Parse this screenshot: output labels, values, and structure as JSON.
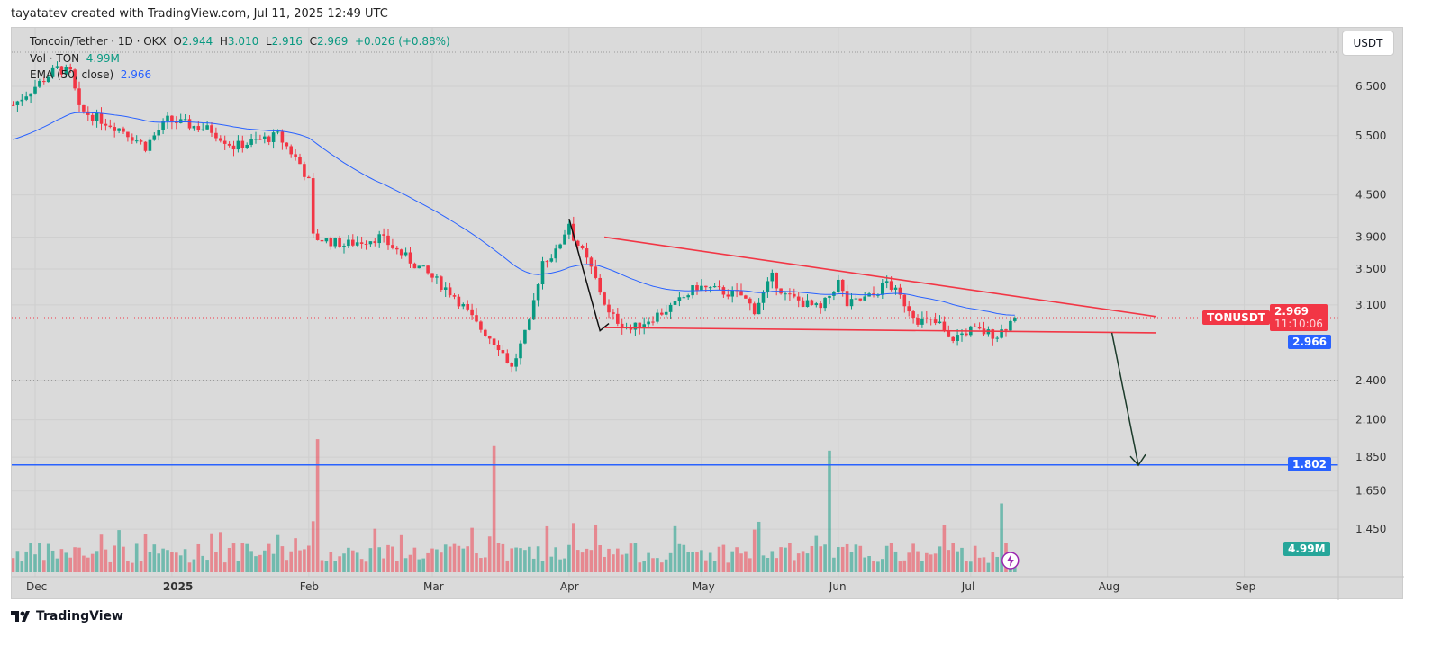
{
  "credit": "tayatatev created with TradingView.com, Jul 11, 2025 12:49 UTC",
  "legend": {
    "symbol": "Toncoin/Tether · 1D · OKX",
    "o_label": "O",
    "o": "2.944",
    "h_label": "H",
    "h": "3.010",
    "l_label": "L",
    "l": "2.916",
    "c_label": "C",
    "c": "2.969",
    "change": "+0.026 (+0.88%)",
    "vol_label": "Vol · TON",
    "vol": "4.99M",
    "ema_label": "EMA (50, close)",
    "ema": "2.966"
  },
  "currency_button": "USDT",
  "tags": {
    "symbol": "TONUSDT",
    "price": "2.969",
    "countdown": "11:10:06",
    "ema": "2.966",
    "level": "1.802",
    "volume": "4.99M"
  },
  "footer": "TradingView",
  "colors": {
    "up": "#089981",
    "down": "#f23645",
    "ema": "#2962ff",
    "trend": "#f23645",
    "level": "#2962ff"
  },
  "chart_data": {
    "type": "candlestick",
    "title": "Toncoin/Tether · 1D · OKX",
    "y_scale": "log",
    "y_ticks": [
      "6.500",
      "5.500",
      "4.500",
      "3.900",
      "3.500",
      "3.100",
      "2.400",
      "2.100",
      "1.850",
      "1.650",
      "1.450"
    ],
    "x_ticks": [
      [
        "Dec",
        "2024-12-01"
      ],
      [
        "2025",
        "2025-01-01"
      ],
      [
        "Feb",
        "2025-02-01"
      ],
      [
        "Mar",
        "2025-03-01"
      ],
      [
        "Apr",
        "2025-04-01"
      ],
      [
        "May",
        "2025-05-01"
      ],
      [
        "Jun",
        "2025-06-01"
      ],
      [
        "Jul",
        "2025-07-01"
      ],
      [
        "Aug",
        "2025-08-01"
      ],
      [
        "Sep",
        "2025-09-01"
      ]
    ],
    "close_keypoints": [
      [
        "2024-11-26",
        6.1
      ],
      [
        "2024-12-01",
        6.5
      ],
      [
        "2024-12-06",
        6.9
      ],
      [
        "2024-12-09",
        6.8
      ],
      [
        "2024-12-11",
        6.0
      ],
      [
        "2024-12-21",
        5.6
      ],
      [
        "2024-12-26",
        5.3
      ],
      [
        "2024-12-31",
        5.8
      ],
      [
        "2025-01-10",
        5.6
      ],
      [
        "2025-01-15",
        5.3
      ],
      [
        "2025-01-25",
        5.5
      ],
      [
        "2025-01-30",
        5.0
      ],
      [
        "2025-02-01",
        4.7
      ],
      [
        "2025-02-02",
        3.9
      ],
      [
        "2025-02-09",
        3.8
      ],
      [
        "2025-02-17",
        3.9
      ],
      [
        "2025-02-24",
        3.6
      ],
      [
        "2025-03-06",
        3.2
      ],
      [
        "2025-03-11",
        2.9
      ],
      [
        "2025-03-16",
        2.7
      ],
      [
        "2025-03-19",
        2.5
      ],
      [
        "2025-03-23",
        2.9
      ],
      [
        "2025-03-26",
        3.6
      ],
      [
        "2025-03-29",
        3.7
      ],
      [
        "2025-04-01",
        4.1
      ],
      [
        "2025-04-02",
        3.9
      ],
      [
        "2025-04-06",
        3.5
      ],
      [
        "2025-04-10",
        3.0
      ],
      [
        "2025-04-15",
        2.85
      ],
      [
        "2025-04-25",
        3.1
      ],
      [
        "2025-04-30",
        3.3
      ],
      [
        "2025-05-10",
        3.2
      ],
      [
        "2025-05-13",
        3.05
      ],
      [
        "2025-05-17",
        3.4
      ],
      [
        "2025-05-20",
        3.2
      ],
      [
        "2025-05-28",
        3.05
      ],
      [
        "2025-06-01",
        3.35
      ],
      [
        "2025-06-03",
        3.1
      ],
      [
        "2025-06-09",
        3.2
      ],
      [
        "2025-06-12",
        3.35
      ],
      [
        "2025-06-19",
        2.95
      ],
      [
        "2025-06-24",
        2.9
      ],
      [
        "2025-06-26",
        2.75
      ],
      [
        "2025-07-01",
        2.85
      ],
      [
        "2025-07-07",
        2.8
      ],
      [
        "2025-07-11",
        2.969
      ]
    ],
    "ema_period": 50,
    "volume_spikes_M": [
      [
        "2025-02-03",
        58
      ],
      [
        "2025-03-15",
        55
      ],
      [
        "2025-05-30",
        53
      ],
      [
        "2025-07-08",
        30
      ]
    ],
    "last_volume_M": 4.99,
    "drawings": {
      "upper_trendline": [
        [
          "2025-04-09",
          3.9
        ],
        [
          "2025-08-12",
          2.98
        ]
      ],
      "lower_trendline": [
        [
          "2025-04-09",
          2.87
        ],
        [
          "2025-08-12",
          2.82
        ]
      ],
      "move_down": [
        [
          "2025-04-01",
          4.15
        ],
        [
          "2025-04-08",
          2.84
        ],
        [
          "2025-04-10",
          2.91
        ]
      ],
      "target_arrow": [
        [
          "2025-08-02",
          2.82
        ],
        [
          "2025-08-08",
          1.8
        ]
      ],
      "support_level": 1.802,
      "dotted_level": 2.4
    }
  }
}
